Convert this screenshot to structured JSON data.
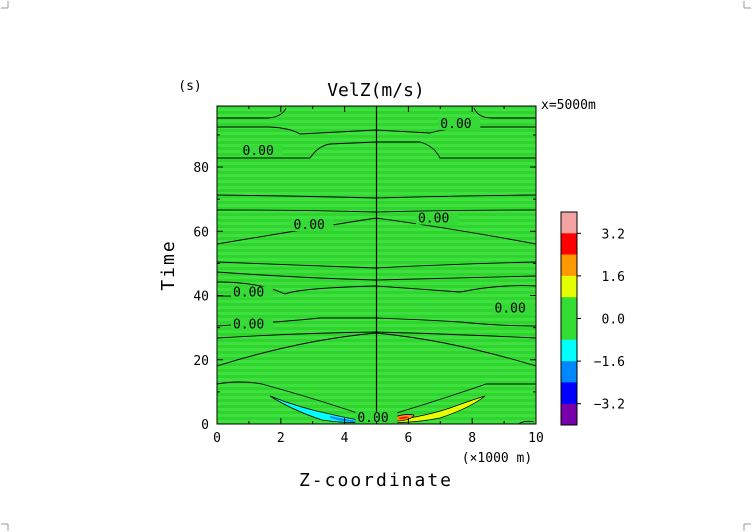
{
  "chart_data": {
    "type": "heatmap",
    "title": "VelZ(m/s)",
    "annotation": "x=5000m",
    "xlabel": "Z-coordinate",
    "x_unit": "(×1000 m)",
    "ylabel": "Time",
    "y_unit": "(s)",
    "xlim": [
      0,
      10
    ],
    "ylim": [
      0,
      99
    ],
    "x_ticks": [
      "0",
      "2",
      "4",
      "6",
      "8",
      "10"
    ],
    "y_ticks": [
      "0",
      "20",
      "40",
      "60",
      "80"
    ],
    "background_color": "#33dd33",
    "contour_labels": [
      {
        "text": "0.00",
        "x": 7.0,
        "y": 92.5
      },
      {
        "text": "0.00",
        "x": 0.8,
        "y": 84.0
      },
      {
        "text": "0.00",
        "x": 2.4,
        "y": 61.0
      },
      {
        "text": "0.00",
        "x": 6.3,
        "y": 63.0
      },
      {
        "text": "0.00",
        "x": 0.5,
        "y": 40.0
      },
      {
        "text": "0.00",
        "x": 8.7,
        "y": 35.0
      },
      {
        "text": "0.00",
        "x": 0.5,
        "y": 30.0
      },
      {
        "text": "0.00",
        "x": 4.4,
        "y": 1.0
      }
    ],
    "colorbar": {
      "levels": [
        {
          "color": "#f4a2a2"
        },
        {
          "color": "#ff0000"
        },
        {
          "color": "#ff9900"
        },
        {
          "color": "#e6ff00"
        },
        {
          "color": "#33dd33"
        },
        {
          "color": "#33dd33"
        },
        {
          "color": "#00ffff"
        },
        {
          "color": "#0088ff"
        },
        {
          "color": "#0000ff"
        },
        {
          "color": "#7700aa"
        }
      ],
      "tick_labels": [
        "3.2",
        "1.6",
        "0.0",
        "−1.6",
        "−3.2"
      ]
    }
  }
}
